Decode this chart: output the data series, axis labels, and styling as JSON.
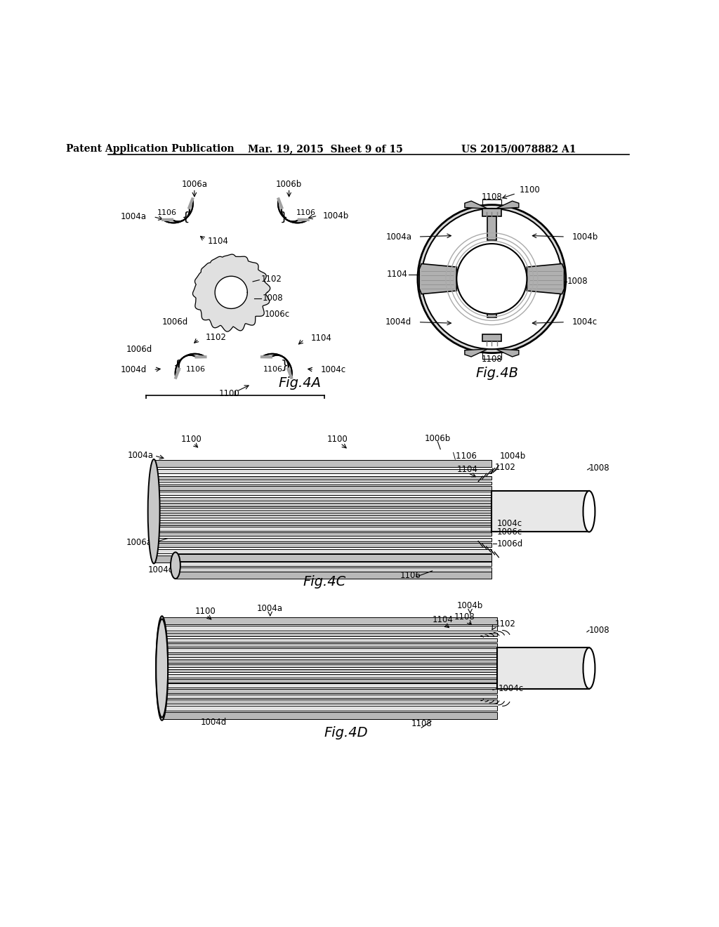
{
  "title_left": "Patent Application Publication",
  "title_mid": "Mar. 19, 2015  Sheet 9 of 15",
  "title_right": "US 2015/0078882 A1",
  "background": "#ffffff"
}
